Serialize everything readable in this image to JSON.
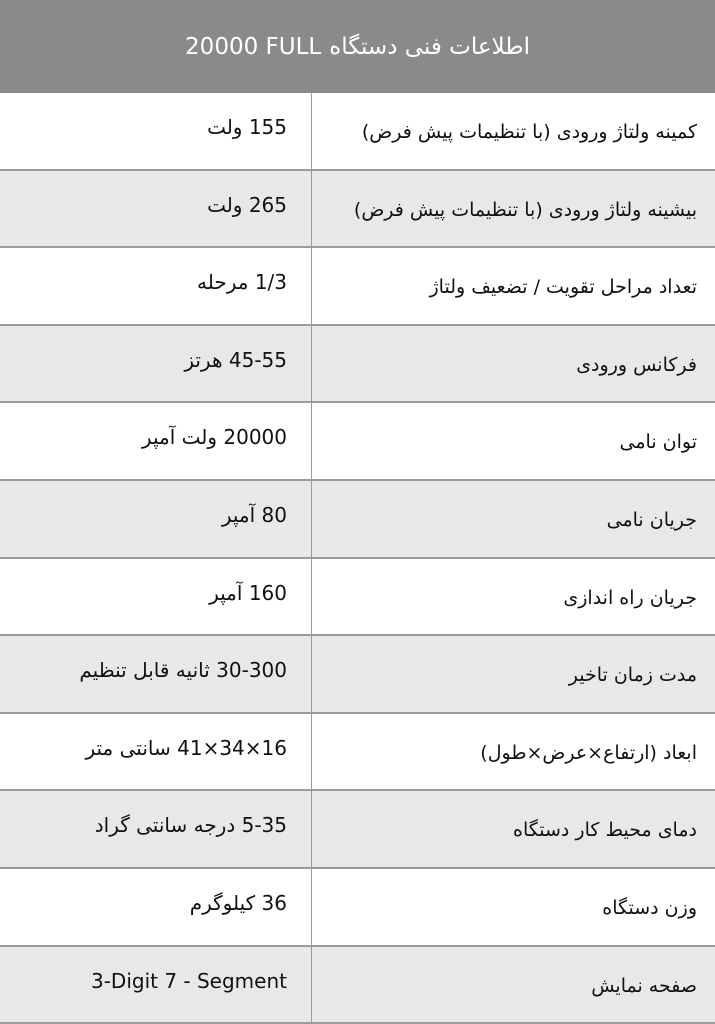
{
  "header": {
    "title": "اطلاعات فنی دستگاه",
    "model": "20000 FULL",
    "background": "#8a8a8a"
  },
  "rows": [
    {
      "label": "کمینه ولتاژ ورودی (با تنظیمات پیش فرض)",
      "value": "155  ولت"
    },
    {
      "label": "بیشینه ولتاژ ورودی (با تنظیمات پیش فرض)",
      "value": "265   ولت"
    },
    {
      "label": "تعداد مراحل تقویت / تضعیف ولتاژ",
      "value": "1/3   مرحله"
    },
    {
      "label": "فرکانس ورودی",
      "value": "45-55  هرتز"
    },
    {
      "label": "توان نامی",
      "value": "20000  ولت آمپر"
    },
    {
      "label": "جریان نامی",
      "value": "80   آمپر"
    },
    {
      "label": "جریان راه اندازی",
      "value": "160 آمپر"
    },
    {
      "label": "مدت زمان تاخیر",
      "value": "30-300  ثانیه  قابل تنظیم"
    },
    {
      "label": "ابعاد (ارتفاع×عرض×طول)",
      "value": "16×34×41  سانتی متر"
    },
    {
      "label": "دمای محیط کار دستگاه",
      "value": "5-35  درجه سانتی گراد"
    },
    {
      "label": "وزن دستگاه",
      "value": "36   کیلوگرم"
    },
    {
      "label": "صفحه نمایش",
      "value": "3-Digit 7 - Segment"
    }
  ]
}
